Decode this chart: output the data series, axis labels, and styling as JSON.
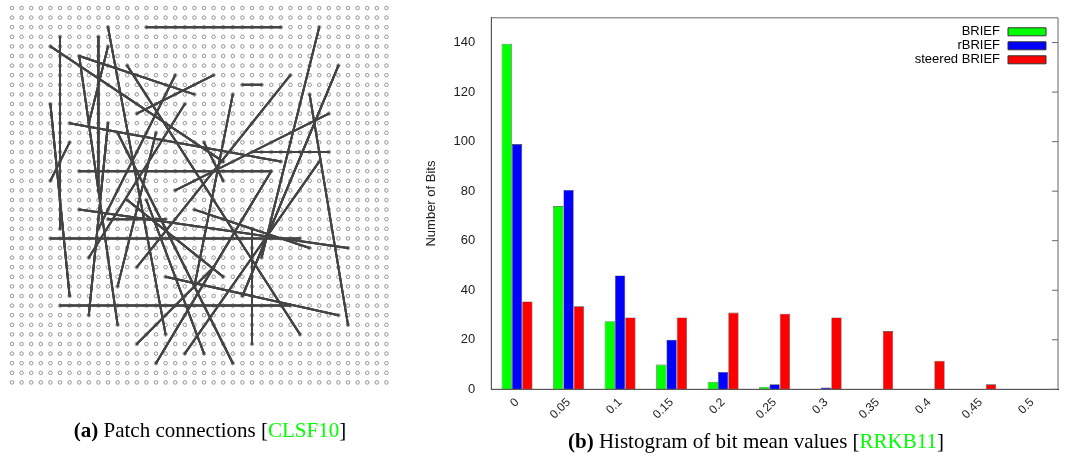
{
  "chart_data": [
    {
      "type": "other",
      "title": "(a) Patch connections [CLSF10]"
    },
    {
      "type": "bar",
      "title": "(b) Histogram of bit mean values [RRKB11]",
      "ylabel": "Number of Bits",
      "categories": [
        "0",
        "0.05",
        "0.1",
        "0.15",
        "0.2",
        "0.25",
        "0.3",
        "0.35",
        "0.4",
        "0.45",
        "0.5"
      ],
      "series": [
        {
          "name": "BRIEF",
          "color": "#00ff00",
          "values": [
            139.5,
            74,
            27.5,
            10,
            3,
            1,
            null,
            null,
            0,
            0,
            0
          ]
        },
        {
          "name": "rBRIEF",
          "color": "#0000ff",
          "values": [
            99,
            80.5,
            46,
            20,
            7,
            2,
            0.7,
            0,
            0,
            0,
            0
          ]
        },
        {
          "name": "steered BRIEF",
          "color": "#ff0000",
          "values": [
            35.5,
            33.5,
            29,
            29,
            31,
            30.5,
            29,
            23.5,
            11.5,
            2,
            0
          ]
        }
      ],
      "ylim": [
        0,
        150
      ],
      "yticks": [
        0,
        20,
        40,
        60,
        80,
        100,
        120,
        140
      ],
      "grid": false,
      "legend": "top right"
    }
  ]
}
